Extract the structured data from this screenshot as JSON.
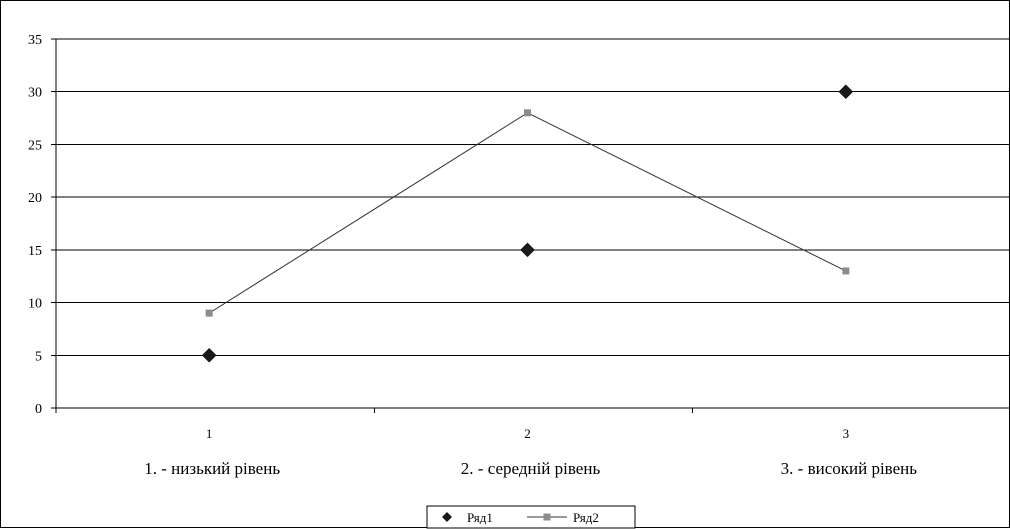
{
  "chart_data": {
    "type": "line",
    "x": [
      "1",
      "2",
      "3"
    ],
    "category_captions": [
      "1. - низький рівень",
      "2. - середній рівень",
      "3. - високий рівень"
    ],
    "ylim": [
      0,
      35
    ],
    "y_ticks": [
      "0",
      "5",
      "10",
      "15",
      "20",
      "25",
      "30",
      "35"
    ],
    "grid": true,
    "legend_position": "bottom",
    "series": [
      {
        "name": "Ряд1",
        "values": [
          5,
          15,
          30
        ],
        "marker": "diamond",
        "line": false,
        "color": "#1a1a1a"
      },
      {
        "name": "Ряд2",
        "values": [
          9,
          28,
          13
        ],
        "marker": "square",
        "line": true,
        "color": "#8c8c8c",
        "line_color": "#333333"
      }
    ]
  }
}
